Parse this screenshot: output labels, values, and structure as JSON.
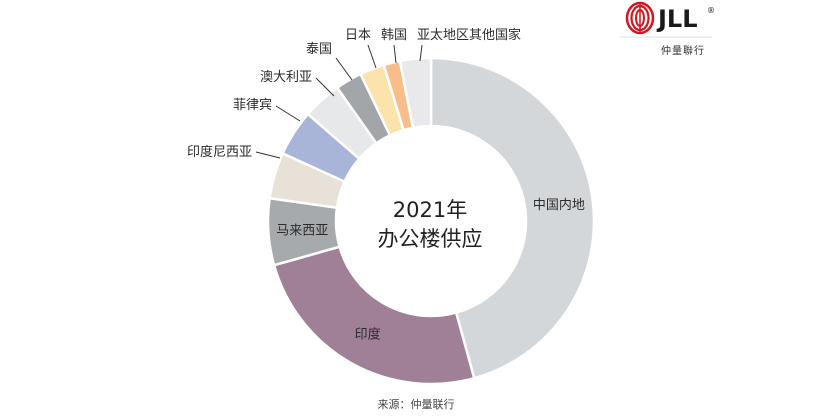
{
  "chart_data": {
    "type": "pie",
    "title": "2021年\n办公楼供应",
    "title_lines": [
      "2021年",
      "办公楼供应"
    ],
    "categories": [
      "中国内地",
      "印度",
      "马来西亚",
      "印度尼西亚",
      "菲律宾",
      "澳大利亚",
      "泰国",
      "日本",
      "韩国",
      "亚太地区其他国家"
    ],
    "values": [
      45.0,
      24.5,
      6.5,
      4.5,
      4.5,
      3.8,
      2.6,
      2.4,
      1.6,
      3.0
    ],
    "colors": [
      "#d4d7da",
      "#a08096",
      "#a7aaad",
      "#e8e1d8",
      "#a9b5d8",
      "#e7e8ea",
      "#a3a6a8",
      "#fbe3ab",
      "#f8be8a",
      "#e9e9ec"
    ],
    "donut": true,
    "legend": "none (slices labelled directly)"
  },
  "source": "来源：仲量联行",
  "logo": {
    "text": "JLL",
    "registered": "®",
    "subtitle": "仲量聯行",
    "brand_color": "#d7141d"
  }
}
